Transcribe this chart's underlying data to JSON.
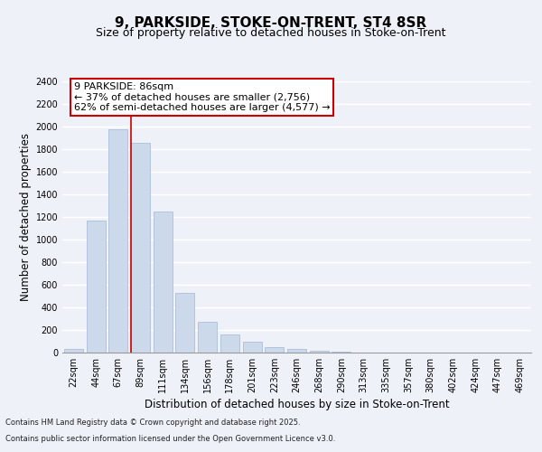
{
  "title": "9, PARKSIDE, STOKE-ON-TRENT, ST4 8SR",
  "subtitle": "Size of property relative to detached houses in Stoke-on-Trent",
  "xlabel": "Distribution of detached houses by size in Stoke-on-Trent",
  "ylabel": "Number of detached properties",
  "categories": [
    "22sqm",
    "44sqm",
    "67sqm",
    "89sqm",
    "111sqm",
    "134sqm",
    "156sqm",
    "178sqm",
    "201sqm",
    "223sqm",
    "246sqm",
    "268sqm",
    "290sqm",
    "313sqm",
    "335sqm",
    "357sqm",
    "380sqm",
    "402sqm",
    "424sqm",
    "447sqm",
    "469sqm"
  ],
  "values": [
    30,
    1170,
    1975,
    1860,
    1245,
    525,
    275,
    160,
    95,
    50,
    35,
    15,
    5,
    3,
    2,
    1,
    1,
    0,
    0,
    0,
    0
  ],
  "bar_color": "#ccd9ea",
  "bar_edge_color": "#a0b8d4",
  "vline_x_index": 3,
  "vline_color": "#cc0000",
  "annotation_text_line1": "9 PARKSIDE: 86sqm",
  "annotation_text_line2": "← 37% of detached houses are smaller (2,756)",
  "annotation_text_line3": "62% of semi-detached houses are larger (4,577) →",
  "annotation_box_color": "#ffffff",
  "annotation_box_edge": "#cc0000",
  "ylim": [
    0,
    2400
  ],
  "yticks": [
    0,
    200,
    400,
    600,
    800,
    1000,
    1200,
    1400,
    1600,
    1800,
    2000,
    2200,
    2400
  ],
  "footer_line1": "Contains HM Land Registry data © Crown copyright and database right 2025.",
  "footer_line2": "Contains public sector information licensed under the Open Government Licence v3.0.",
  "bg_color": "#eef2f8",
  "grid_color": "#ffffff",
  "title_fontsize": 11,
  "subtitle_fontsize": 9,
  "axis_label_fontsize": 8.5,
  "tick_fontsize": 7,
  "annotation_fontsize": 8
}
